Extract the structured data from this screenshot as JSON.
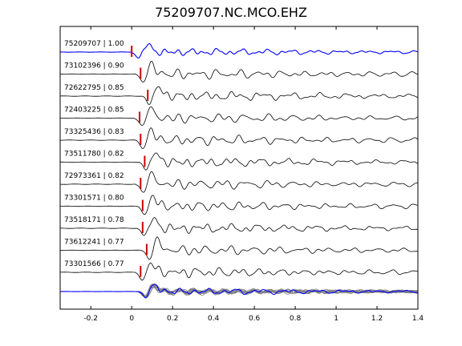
{
  "title": "75209707.NC.MCO.EHZ",
  "chart_data": {
    "type": "line",
    "title": "75209707.NC.MCO.EHZ",
    "xlabel": "",
    "ylabel": "",
    "xlim": [
      -0.35,
      1.4
    ],
    "xticks": [
      -0.2,
      0,
      0.2,
      0.4,
      0.6,
      0.8,
      1,
      1.2,
      1.4
    ],
    "xtick_labels": [
      "-0.2",
      "0",
      "0.2",
      "0.4",
      "0.6",
      "0.8",
      "1",
      "1.2",
      "1.4"
    ],
    "grid": false,
    "series": [
      {
        "name": "75209707 | 1.00",
        "pick_time": 0.0,
        "color": "#0000ff"
      },
      {
        "name": "73102396 | 0.90",
        "pick_time": 0.02,
        "color": "#000000"
      },
      {
        "name": "72622795 | 0.85",
        "pick_time": 0.055,
        "color": "#000000"
      },
      {
        "name": "72403225 | 0.85",
        "pick_time": 0.015,
        "color": "#000000"
      },
      {
        "name": "73325436 | 0.83",
        "pick_time": 0.02,
        "color": "#000000"
      },
      {
        "name": "73511780 | 0.82",
        "pick_time": 0.04,
        "color": "#000000"
      },
      {
        "name": "72973361 | 0.82",
        "pick_time": 0.02,
        "color": "#000000"
      },
      {
        "name": "73301571 | 0.80",
        "pick_time": 0.03,
        "color": "#000000"
      },
      {
        "name": "73518171 | 0.78",
        "pick_time": 0.03,
        "color": "#000000"
      },
      {
        "name": "73612241 | 0.77",
        "pick_time": 0.05,
        "color": "#000000"
      },
      {
        "name": "73301566 | 0.77",
        "pick_time": 0.02,
        "color": "#000000"
      }
    ],
    "stack": {
      "colors": [
        "#0000ff",
        "#808080"
      ]
    },
    "pick_color": "#cc0000"
  }
}
